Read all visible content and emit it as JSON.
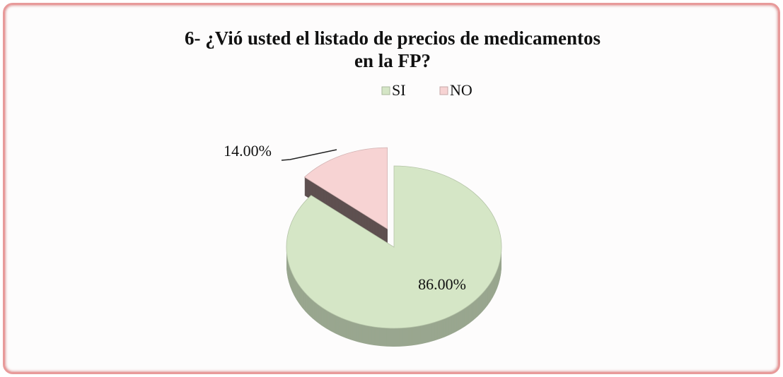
{
  "chart_data": {
    "type": "pie",
    "title": "6- ¿Vió usted el listado de precios de medicamentos en la FP?",
    "categories": [
      "SI",
      "NO"
    ],
    "values": [
      86,
      14
    ],
    "value_labels": [
      "86.00%",
      "14.00%"
    ],
    "colors": [
      "#d5e6c6",
      "#f7d3d3"
    ],
    "legend": "top"
  }
}
